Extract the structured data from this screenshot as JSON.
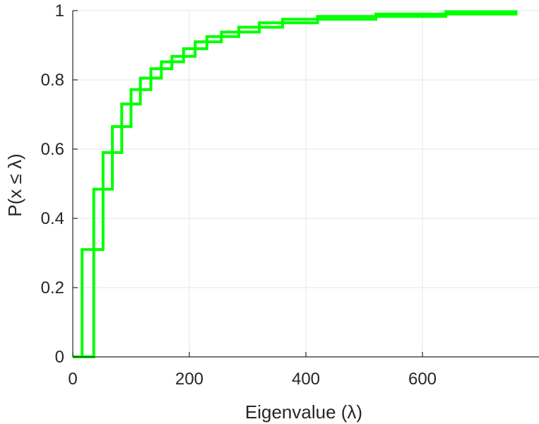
{
  "chart_data": {
    "type": "line",
    "xlabel": "Eigenvalue (λ)",
    "ylabel": "P(x ≤ λ)",
    "xlim": [
      0,
      800
    ],
    "ylim": [
      0,
      1
    ],
    "xticks": [
      0,
      200,
      400,
      600
    ],
    "yticks": [
      0,
      0.2,
      0.4,
      0.6,
      0.8,
      1
    ],
    "xtick_labels": [
      "0",
      "200",
      "400",
      "600"
    ],
    "ytick_labels": [
      "0",
      "0.2",
      "0.4",
      "0.6",
      "0.8",
      "1"
    ],
    "grid": true,
    "legend": "none",
    "step": true,
    "color": "#00ff00",
    "series": [
      {
        "x": [
          0,
          16,
          16,
          36,
          36,
          52,
          52,
          68,
          68,
          84,
          84,
          100,
          100,
          116,
          116,
          134,
          134,
          152,
          152,
          170,
          170,
          190,
          190,
          210,
          210,
          230,
          230,
          255,
          255,
          285,
          285,
          320,
          320,
          360,
          360,
          420,
          420,
          520,
          520,
          640,
          640,
          763
        ],
        "y": [
          0,
          0,
          0.31,
          0.31,
          0.484,
          0.484,
          0.59,
          0.59,
          0.665,
          0.665,
          0.73,
          0.73,
          0.772,
          0.772,
          0.805,
          0.805,
          0.832,
          0.832,
          0.852,
          0.852,
          0.868,
          0.868,
          0.89,
          0.89,
          0.91,
          0.91,
          0.925,
          0.925,
          0.938,
          0.938,
          0.952,
          0.952,
          0.965,
          0.965,
          0.975,
          0.975,
          0.983,
          0.983,
          0.99,
          0.99,
          0.997,
          0.997
        ]
      },
      {
        "x": [
          0,
          36,
          36,
          52,
          52,
          68,
          68,
          84,
          84,
          100,
          100,
          116,
          116,
          134,
          134,
          152,
          152,
          170,
          170,
          190,
          190,
          210,
          210,
          230,
          230,
          255,
          255,
          285,
          285,
          320,
          320,
          360,
          360,
          420,
          420,
          520,
          520,
          640,
          640,
          763
        ],
        "y": [
          0,
          0,
          0.31,
          0.31,
          0.484,
          0.484,
          0.59,
          0.59,
          0.665,
          0.665,
          0.73,
          0.73,
          0.772,
          0.772,
          0.805,
          0.805,
          0.832,
          0.832,
          0.852,
          0.852,
          0.868,
          0.868,
          0.89,
          0.89,
          0.91,
          0.91,
          0.925,
          0.925,
          0.938,
          0.938,
          0.952,
          0.952,
          0.965,
          0.965,
          0.975,
          0.975,
          0.983,
          0.983,
          0.99,
          0.99
        ]
      }
    ]
  }
}
